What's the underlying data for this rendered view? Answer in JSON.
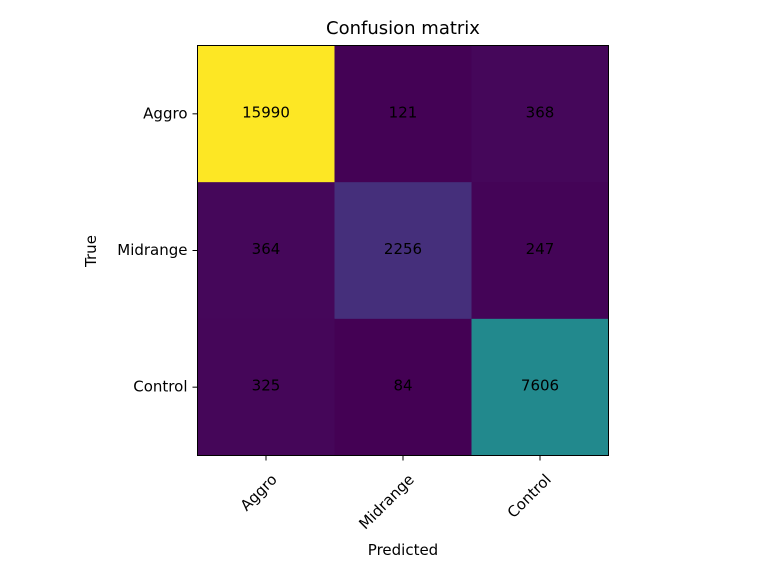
{
  "chart_data": {
    "type": "heatmap",
    "title": "Confusion matrix",
    "xlabel": "Predicted",
    "ylabel": "True",
    "x_categories": [
      "Aggro",
      "Midrange",
      "Control"
    ],
    "y_categories": [
      "Aggro",
      "Midrange",
      "Control"
    ],
    "values": [
      [
        15990,
        121,
        368
      ],
      [
        364,
        2256,
        247
      ],
      [
        325,
        84,
        7606
      ]
    ],
    "colormap": "viridis",
    "color_range": [
      84,
      15990
    ],
    "cell_text_color": "#000000"
  }
}
